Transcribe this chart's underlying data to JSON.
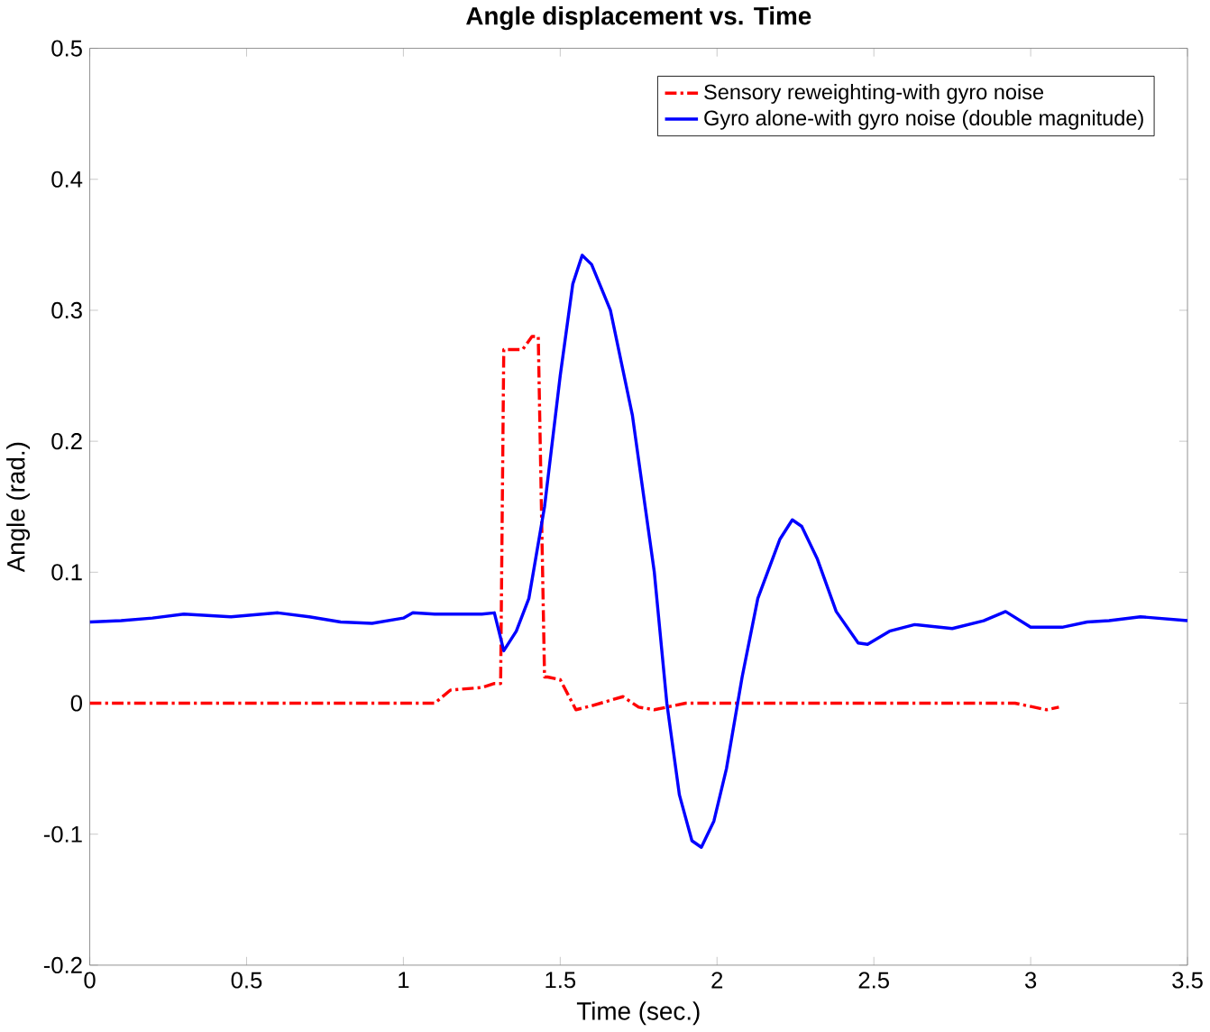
{
  "chart_data": {
    "type": "line",
    "title": "Angle displacement vs. Time",
    "xlabel": "Time (sec.)",
    "ylabel": "Angle (rad.)",
    "xlim": [
      0,
      3.5
    ],
    "ylim": [
      -0.2,
      0.5
    ],
    "xticks": [
      0,
      0.5,
      1,
      1.5,
      2,
      2.5,
      3,
      3.5
    ],
    "yticks": [
      -0.2,
      -0.1,
      0,
      0.1,
      0.2,
      0.3,
      0.4,
      0.5
    ],
    "legend": "top right",
    "grid": false,
    "series": [
      {
        "name": "Sensory reweighting-with gyro noise",
        "color": "#ff0000",
        "line_style": "dashed",
        "x": [
          0,
          0.2,
          0.4,
          0.6,
          0.8,
          1.0,
          1.1,
          1.15,
          1.25,
          1.29,
          1.31,
          1.32,
          1.38,
          1.41,
          1.43,
          1.45,
          1.46,
          1.5,
          1.55,
          1.6,
          1.7,
          1.75,
          1.8,
          1.9,
          2.0,
          2.5,
          2.95,
          3.05,
          3.09
        ],
        "values": [
          0,
          0,
          0,
          0,
          0,
          0,
          0,
          0.01,
          0.012,
          0.015,
          0.015,
          0.27,
          0.27,
          0.28,
          0.28,
          0.02,
          0.02,
          0.018,
          -0.005,
          -0.002,
          0.005,
          -0.003,
          -0.005,
          0,
          0,
          0,
          0,
          -0.005,
          -0.003
        ]
      },
      {
        "name": "Gyro alone-with gyro noise (double magnitude)",
        "color": "#0000ff",
        "line_style": "solid",
        "x": [
          0,
          0.1,
          0.2,
          0.3,
          0.45,
          0.6,
          0.7,
          0.8,
          0.9,
          1.0,
          1.03,
          1.1,
          1.25,
          1.29,
          1.32,
          1.36,
          1.4,
          1.45,
          1.5,
          1.54,
          1.57,
          1.6,
          1.66,
          1.73,
          1.8,
          1.84,
          1.88,
          1.92,
          1.95,
          1.99,
          2.03,
          2.08,
          2.13,
          2.2,
          2.24,
          2.27,
          2.32,
          2.38,
          2.45,
          2.48,
          2.55,
          2.63,
          2.75,
          2.85,
          2.92,
          3.0,
          3.1,
          3.18,
          3.25,
          3.35,
          3.5
        ],
        "values": [
          0.062,
          0.063,
          0.065,
          0.068,
          0.066,
          0.069,
          0.066,
          0.062,
          0.061,
          0.065,
          0.069,
          0.068,
          0.068,
          0.069,
          0.04,
          0.055,
          0.08,
          0.15,
          0.25,
          0.32,
          0.342,
          0.335,
          0.3,
          0.22,
          0.1,
          0.0,
          -0.07,
          -0.105,
          -0.11,
          -0.09,
          -0.05,
          0.02,
          0.08,
          0.125,
          0.14,
          0.135,
          0.11,
          0.07,
          0.046,
          0.045,
          0.055,
          0.06,
          0.057,
          0.063,
          0.07,
          0.058,
          0.058,
          0.062,
          0.063,
          0.066,
          0.063
        ]
      }
    ]
  }
}
